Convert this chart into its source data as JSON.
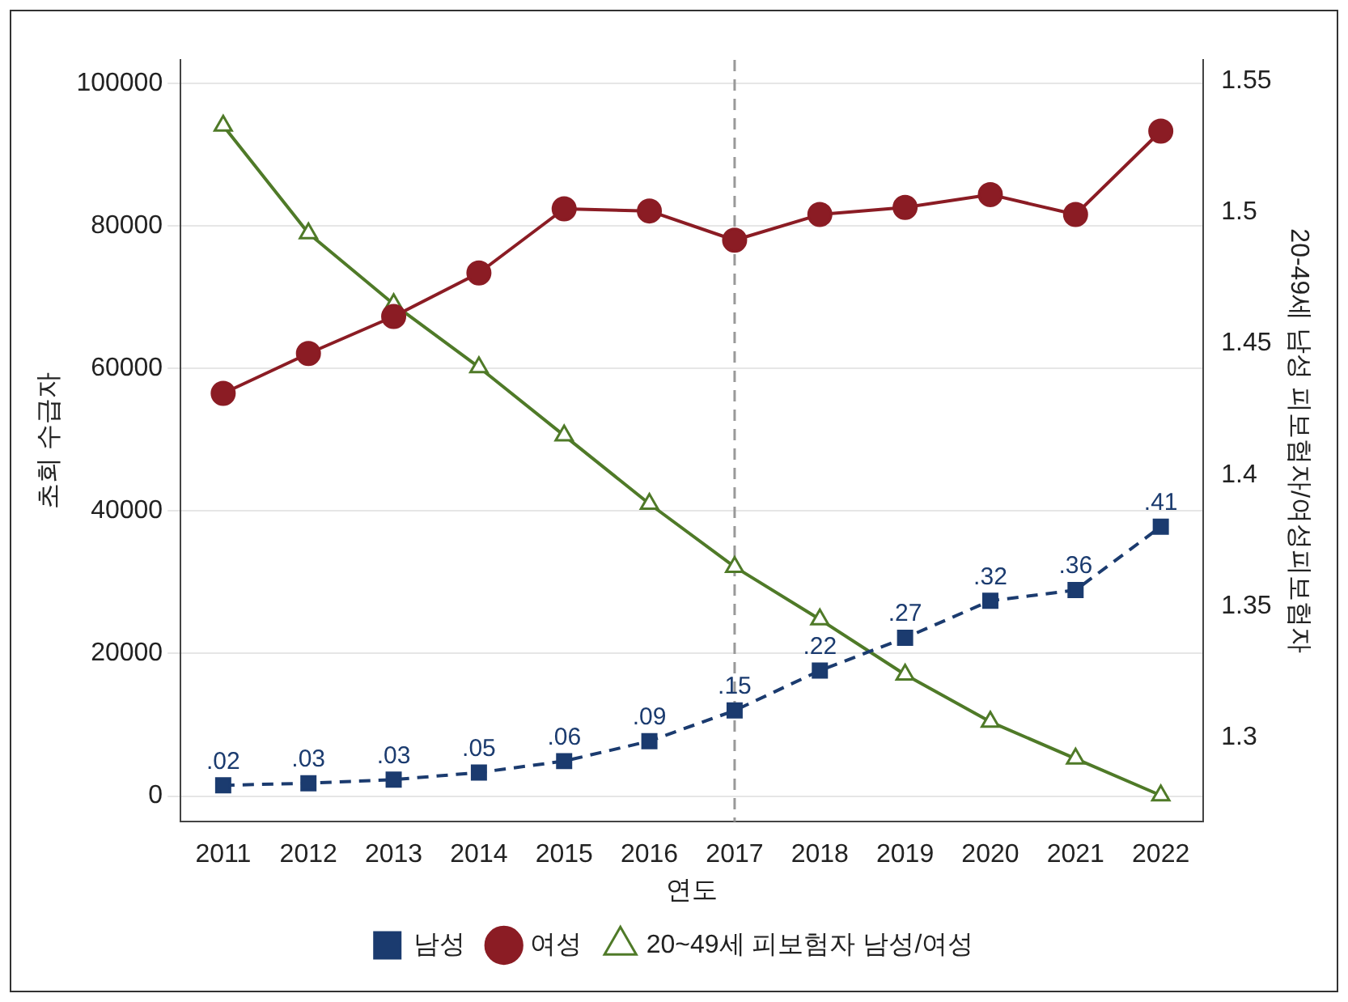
{
  "chart_data": {
    "type": "line",
    "xlabel": "연도",
    "ylabel": "초회 수급자",
    "y2label": "20-49세 남성 피보험자/여성피보험자",
    "categories": [
      "2011",
      "2012",
      "2013",
      "2014",
      "2015",
      "2016",
      "2017",
      "2018",
      "2019",
      "2020",
      "2021",
      "2022"
    ],
    "series": [
      {
        "name": "남성",
        "color": "#1b3b6f",
        "marker": "square",
        "line_style": "dashed",
        "values": [
          1500,
          1800,
          2300,
          3300,
          4900,
          7700,
          12000,
          17600,
          22200,
          27400,
          28900,
          37800
        ]
      },
      {
        "name": "여성",
        "color": "#8b1c24",
        "marker": "circle",
        "line_style": "solid",
        "values": [
          56500,
          62100,
          67300,
          73400,
          82400,
          82100,
          78000,
          81600,
          82600,
          84400,
          81600,
          93300
        ]
      },
      {
        "name": "20~49세 피보험자 남성/여성",
        "color": "#4f7a28",
        "marker": "triangle",
        "line_style": "solid",
        "axis": "y2",
        "values": [
          1.533,
          1.492,
          1.465,
          1.441,
          1.415,
          1.389,
          1.365,
          1.345,
          1.324,
          1.306,
          1.292,
          1.278
        ]
      }
    ],
    "ylim": [
      -3600,
      103300
    ],
    "yticks": [
      0,
      20000,
      40000,
      60000,
      80000,
      100000
    ],
    "y2lim": [
      1.268,
      1.558
    ],
    "y2ticks": [
      1.3,
      1.35,
      1.4,
      1.45,
      1.5,
      1.55
    ],
    "ref_lines": [
      {
        "axis": "x",
        "value": "2017",
        "color": "#999999",
        "line_style": "dashed"
      }
    ],
    "annotations": [
      {
        "text": ".02",
        "x": "2011",
        "y": 1500
      },
      {
        "text": ".03",
        "x": "2012",
        "y": 1800
      },
      {
        "text": ".03",
        "x": "2013",
        "y": 2300
      },
      {
        "text": ".05",
        "x": "2014",
        "y": 3300
      },
      {
        "text": ".06",
        "x": "2015",
        "y": 4900
      },
      {
        "text": ".09",
        "x": "2016",
        "y": 7700
      },
      {
        "text": ".15",
        "x": "2017",
        "y": 12000
      },
      {
        "text": ".22",
        "x": "2018",
        "y": 17600
      },
      {
        "text": ".27",
        "x": "2019",
        "y": 22200
      },
      {
        "text": ".32",
        "x": "2020",
        "y": 27400
      },
      {
        "text": ".36",
        "x": "2021",
        "y": 28900
      },
      {
        "text": ".41",
        "x": "2022",
        "y": 37800
      }
    ],
    "grid": "y",
    "legend": "bottom"
  }
}
